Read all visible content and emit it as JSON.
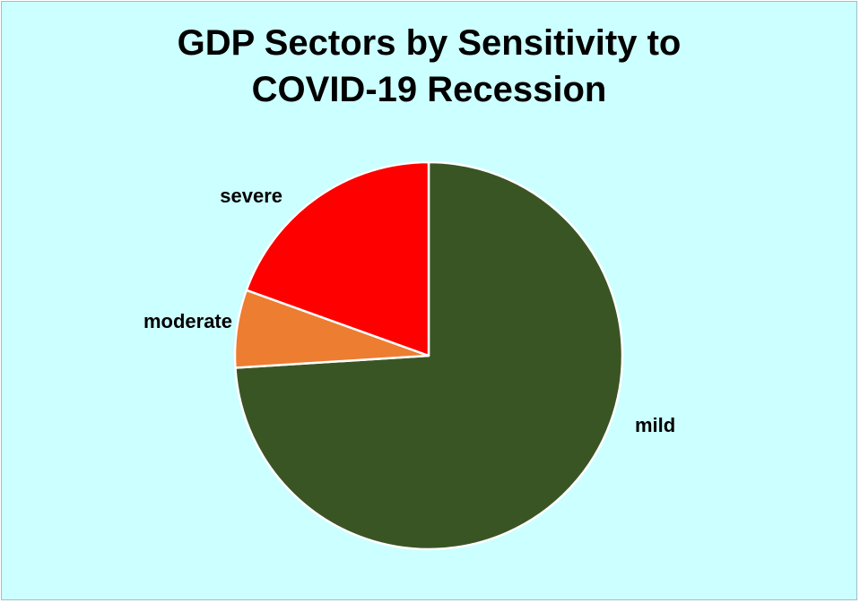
{
  "chart_data": {
    "type": "pie",
    "title_lines": [
      "GDP Sectors by Sensitivity to",
      "COVID-19 Recession"
    ],
    "slices": [
      {
        "label": "mild",
        "value": 74,
        "color": "#3a5524"
      },
      {
        "label": "moderate",
        "value": 6.5,
        "color": "#ed7d31"
      },
      {
        "label": "severe",
        "value": 19.5,
        "color": "#ff0000"
      }
    ],
    "start_angle_deg": 0,
    "direction": "clockwise",
    "legend": "none",
    "background_color": "#ccffff",
    "slice_border_color": "#ffffff"
  }
}
